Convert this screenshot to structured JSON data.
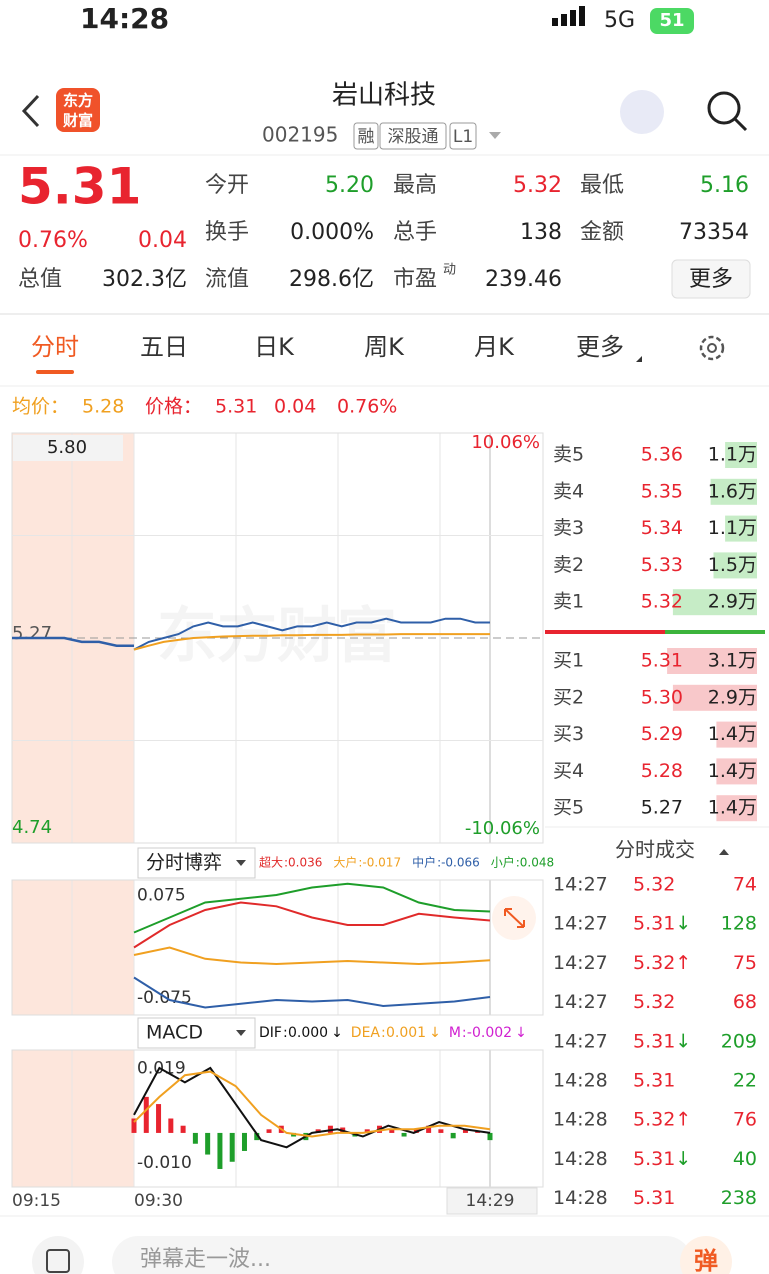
{
  "status_bar": {
    "time": "14:28",
    "network": "5G",
    "battery": "51"
  },
  "header": {
    "logo": [
      "东方",
      "财富"
    ],
    "title": "岩山科技",
    "code": "002195",
    "tags": [
      "融",
      "深股通",
      "L1"
    ]
  },
  "quote": {
    "price": "5.31",
    "change_pct": "0.76%",
    "change": "0.04",
    "total_value": {
      "label": "总值",
      "value": "302.3亿"
    },
    "stats": [
      {
        "label": "今开",
        "value": "5.20",
        "color": "#1e9e2a"
      },
      {
        "label": "最高",
        "value": "5.32",
        "color": "#e8242f"
      },
      {
        "label": "最低",
        "value": "5.16",
        "color": "#1e9e2a"
      },
      {
        "label": "换手",
        "value": "0.000%",
        "color": "#222222"
      },
      {
        "label": "总手",
        "value": "138",
        "color": "#222222"
      },
      {
        "label": "金额",
        "value": "73354",
        "color": "#222222"
      },
      {
        "label": "流值",
        "value": "298.6亿",
        "color": "#222222"
      },
      {
        "label": "市盈",
        "sup": "动",
        "value": "239.46",
        "color": "#222222"
      }
    ],
    "more": "更多"
  },
  "tabs": [
    "分时",
    "五日",
    "日K",
    "周K",
    "月K",
    "更多"
  ],
  "info": {
    "avg_label": "均价：",
    "avg": "5.28",
    "price_label": "价格：",
    "price": "5.31",
    "change": "0.04",
    "change_pct": "0.76%"
  },
  "chart_data": [
    {
      "type": "line",
      "watermark": "东方财富",
      "ylim": [
        4.74,
        5.8
      ],
      "yticks": [
        {
          "value": 5.8,
          "label": "5.80"
        },
        5.27,
        4.74
      ],
      "y2lim": [
        -10.06,
        10.06
      ],
      "y2ticks": [
        {
          "value": 10.06,
          "label": "10.06%"
        },
        {
          "value": -10.06,
          "label": "-10.06%"
        }
      ],
      "xlabels": [
        "09:15",
        "09:30",
        "14:29"
      ],
      "series": [
        {
          "color": "#2f5fa8",
          "premarket": [
            5.27,
            5.27,
            5.27,
            5.27,
            5.26,
            5.26,
            5.25,
            5.25
          ],
          "values": [
            5.24,
            5.26,
            5.27,
            5.28,
            5.3,
            5.31,
            5.3,
            5.3,
            5.31,
            5.3,
            5.29,
            5.3,
            5.3,
            5.31,
            5.3,
            5.31,
            5.31,
            5.32,
            5.31,
            5.31,
            5.31,
            5.32,
            5.32,
            5.31,
            5.31
          ]
        },
        {
          "color": "#f0a020",
          "values": [
            5.24,
            5.25,
            5.26,
            5.265,
            5.27,
            5.272,
            5.274,
            5.275,
            5.276,
            5.276,
            5.277,
            5.277,
            5.278,
            5.278,
            5.278,
            5.279,
            5.279,
            5.279,
            5.28,
            5.28,
            5.28,
            5.28,
            5.28,
            5.28,
            5.28
          ]
        }
      ]
    },
    {
      "type": "line",
      "title": "分时博弈",
      "ylim": [
        -0.09,
        0.09
      ],
      "yticks": [
        0.075,
        -0.075
      ],
      "series": [
        {
          "name": "超大",
          "latest": "0.036",
          "color": "#e02a2a",
          "values": [
            0,
            0.03,
            0.05,
            0.06,
            0.055,
            0.04,
            0.03,
            0.03,
            0.045,
            0.04,
            0.036
          ]
        },
        {
          "name": "大户",
          "latest": "-0.017",
          "color": "#f0a020",
          "values": [
            -0.01,
            0,
            -0.015,
            -0.02,
            -0.022,
            -0.02,
            -0.018,
            -0.02,
            -0.022,
            -0.02,
            -0.017
          ]
        },
        {
          "name": "中户",
          "latest": "-0.066",
          "color": "#2f5fa8",
          "values": [
            -0.04,
            -0.07,
            -0.08,
            -0.075,
            -0.07,
            -0.072,
            -0.07,
            -0.078,
            -0.075,
            -0.072,
            -0.066
          ]
        },
        {
          "name": "小户",
          "latest": "0.048",
          "color": "#1e9e2a",
          "values": [
            0.02,
            0.04,
            0.06,
            0.065,
            0.07,
            0.08,
            0.085,
            0.08,
            0.06,
            0.05,
            0.048
          ]
        }
      ]
    },
    {
      "type": "macd",
      "title": "MACD",
      "ylim": [
        -0.015,
        0.023
      ],
      "yticks": [
        0.019,
        {
          "value": -0.01,
          "label": "-0.010"
        }
      ],
      "series": [
        {
          "name": "DIF",
          "latest": "0.000",
          "arrow": "↓",
          "color": "#111111",
          "values": [
            0.005,
            0.018,
            0.014,
            0.018,
            0.008,
            -0.002,
            -0.004,
            0,
            0.001,
            -0.001,
            0.002,
            0,
            0.003,
            0.001,
            0
          ]
        },
        {
          "name": "DEA",
          "latest": "0.001",
          "arrow": "↓",
          "color": "#f0a020",
          "values": [
            0.003,
            0.01,
            0.016,
            0.017,
            0.013,
            0.005,
            0,
            -0.001,
            0,
            0,
            0.001,
            0.001,
            0.002,
            0.002,
            0.001
          ]
        },
        {
          "name": "M",
          "latest": "-0.002",
          "arrow": "↓",
          "color": "#d020d0",
          "up_color": "#e8242f",
          "down_color": "#1e9e2a",
          "values": [
            0.004,
            0.01,
            0.008,
            0.004,
            0.002,
            -0.003,
            -0.006,
            -0.01,
            -0.008,
            -0.005,
            -0.002,
            0.001,
            0.002,
            -0.001,
            -0.002,
            0.001,
            0.002,
            0.0015,
            -0.001,
            0.001,
            0.002,
            0.001,
            -0.001,
            0.001,
            0.002,
            0.001,
            -0.0015,
            0.001,
            0.0005,
            -0.002
          ]
        }
      ]
    }
  ],
  "order_book": {
    "sell": [
      {
        "label": "卖5",
        "price": "5.36",
        "color": "#e8242f",
        "volume": 1.1,
        "volume_label": "1.1万"
      },
      {
        "label": "卖4",
        "price": "5.35",
        "color": "#e8242f",
        "volume": 1.6,
        "volume_label": "1.6万"
      },
      {
        "label": "卖3",
        "price": "5.34",
        "color": "#e8242f",
        "volume": 1.1,
        "volume_label": "1.1万"
      },
      {
        "label": "卖2",
        "price": "5.33",
        "color": "#e8242f",
        "volume": 1.5,
        "volume_label": "1.5万"
      },
      {
        "label": "卖1",
        "price": "5.32",
        "color": "#e8242f",
        "volume": 2.9,
        "volume_label": "2.9万"
      }
    ],
    "buy": [
      {
        "label": "买1",
        "price": "5.31",
        "color": "#e8242f",
        "volume": 3.1,
        "volume_label": "3.1万"
      },
      {
        "label": "买2",
        "price": "5.30",
        "color": "#e8242f",
        "volume": 2.9,
        "volume_label": "2.9万"
      },
      {
        "label": "买3",
        "price": "5.29",
        "color": "#e8242f",
        "volume": 1.4,
        "volume_label": "1.4万"
      },
      {
        "label": "买4",
        "price": "5.28",
        "color": "#e8242f",
        "volume": 1.4,
        "volume_label": "1.4万"
      },
      {
        "label": "买5",
        "price": "5.27",
        "color": "#222222",
        "volume": 1.4,
        "volume_label": "1.4万"
      }
    ]
  },
  "trades": {
    "title": "分时成交",
    "rows": [
      {
        "time": "14:27",
        "price": "5.32",
        "volume": "74",
        "color": "#e8242f"
      },
      {
        "time": "14:27",
        "price": "5.31",
        "arrow": "↓",
        "volume": "128",
        "color": "#1e9e2a"
      },
      {
        "time": "14:27",
        "price": "5.32",
        "arrow": "↑",
        "volume": "75",
        "color": "#e8242f"
      },
      {
        "time": "14:27",
        "price": "5.32",
        "volume": "68",
        "color": "#e8242f"
      },
      {
        "time": "14:27",
        "price": "5.31",
        "arrow": "↓",
        "volume": "209",
        "color": "#1e9e2a"
      },
      {
        "time": "14:28",
        "price": "5.31",
        "volume": "22",
        "color": "#1e9e2a"
      },
      {
        "time": "14:28",
        "price": "5.32",
        "arrow": "↑",
        "volume": "76",
        "color": "#e8242f"
      },
      {
        "time": "14:28",
        "price": "5.31",
        "arrow": "↓",
        "volume": "40",
        "color": "#1e9e2a"
      },
      {
        "time": "14:28",
        "price": "5.31",
        "volume": "238",
        "color": "#1e9e2a"
      }
    ]
  },
  "bottom": {
    "placeholder": "弹幕走一波...",
    "button": "弹"
  }
}
